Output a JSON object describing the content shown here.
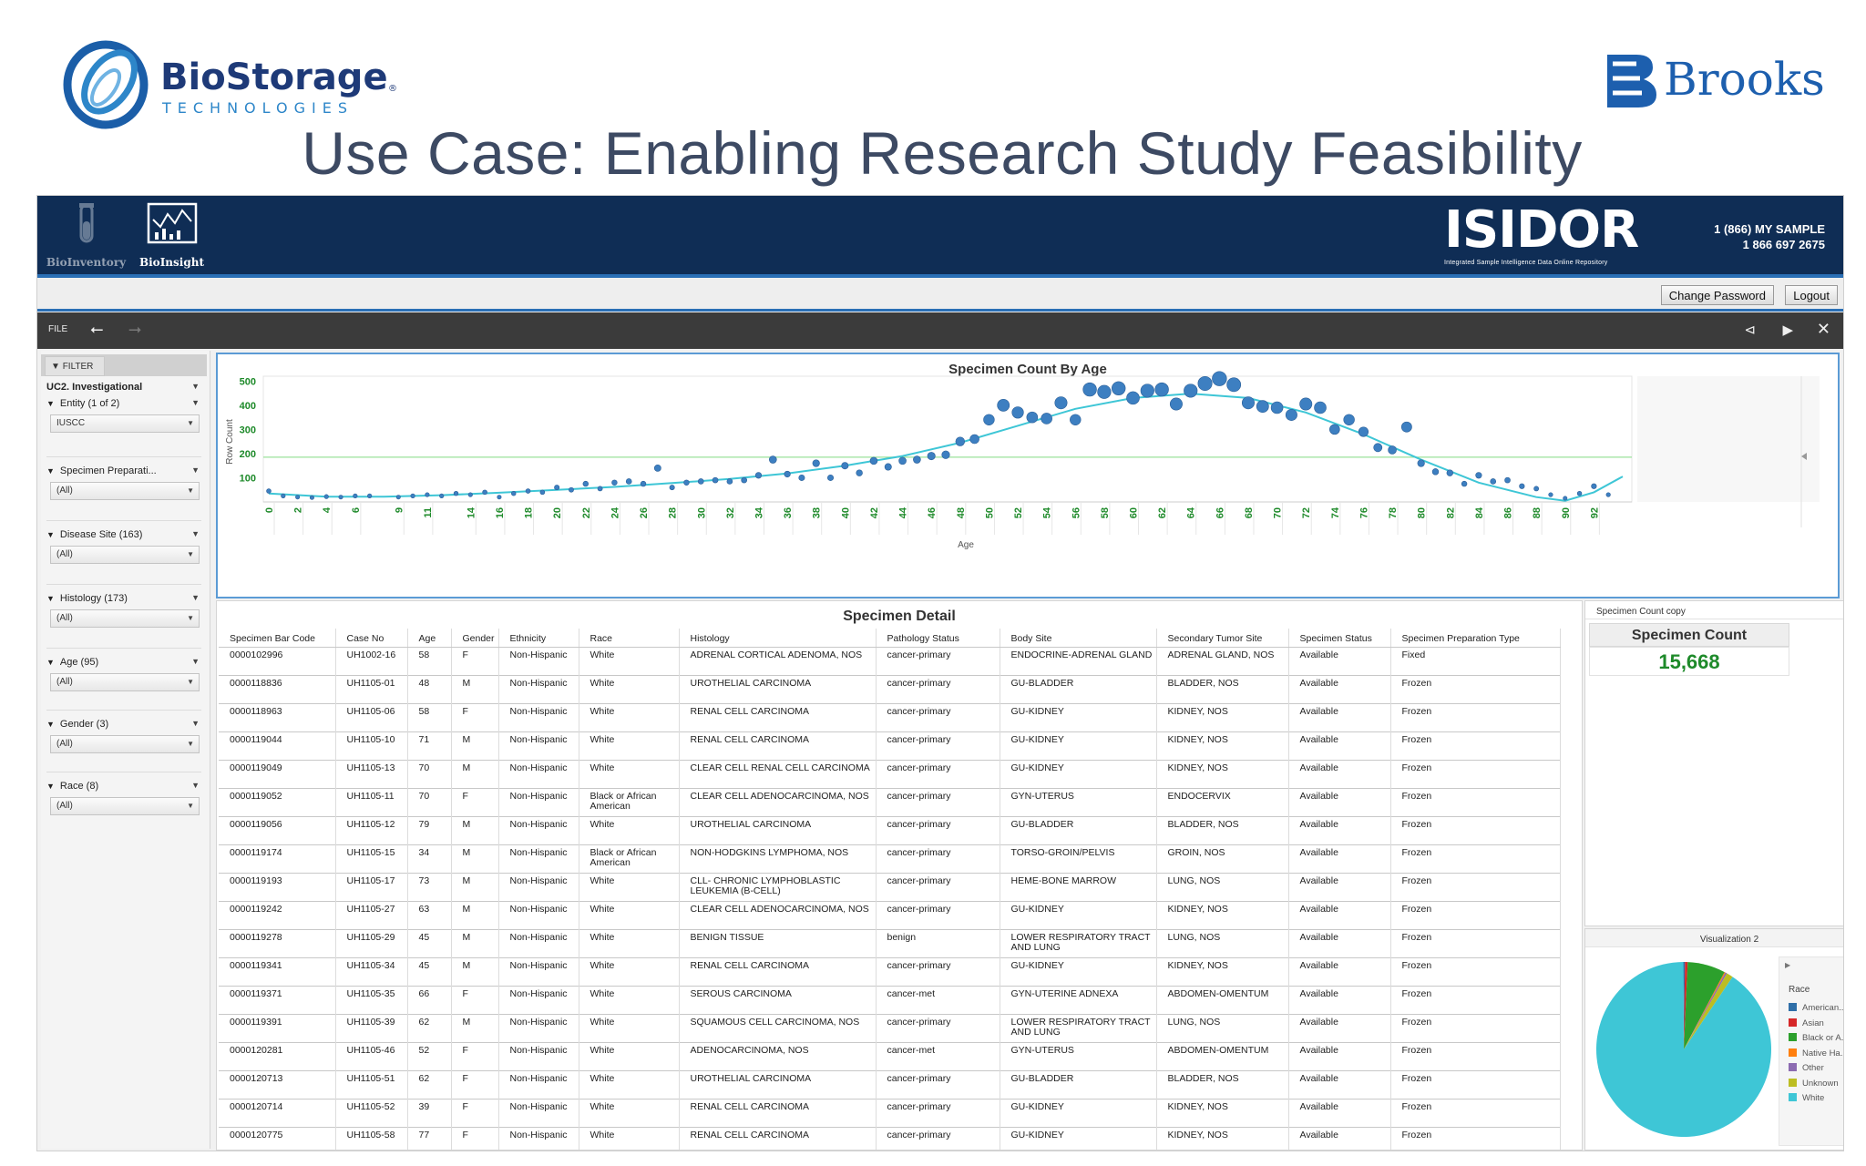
{
  "slide": {
    "title": "Use Case: Enabling Research Study Feasibility",
    "left_logo": {
      "name": "BioStorage",
      "sub": "TECHNOLOGIES",
      "mark": "®"
    },
    "right_logo": {
      "name": "Brooks"
    }
  },
  "topbar": {
    "apps": [
      {
        "label": "BioInventory"
      },
      {
        "label": "BioInsight"
      }
    ],
    "brand": {
      "name": "ISIDOR",
      "tagline": "Integrated Sample Intelligence Data Online Repository"
    },
    "phone_line1": "1 (866) MY SAMPLE",
    "phone_line2": "1 866 697 2675"
  },
  "account": {
    "change_password": "Change Password",
    "logout": "Logout"
  },
  "toolbar": {
    "file": "FILE"
  },
  "filters": {
    "tab_label": "FILTER",
    "preset": "UC2. Investigational",
    "groups": [
      {
        "label": "Entity (1 of 2)",
        "value": "IUSCC"
      },
      {
        "label": "Specimen Preparati...",
        "value": "(All)"
      },
      {
        "label": "Disease Site (163)",
        "value": "(All)"
      },
      {
        "label": "Histology (173)",
        "value": "(All)"
      },
      {
        "label": "Age (95)",
        "value": "(All)"
      },
      {
        "label": "Gender (3)",
        "value": "(All)"
      },
      {
        "label": "Race (8)",
        "value": "(All)"
      }
    ]
  },
  "chart_data": {
    "type": "scatter",
    "title": "Specimen Count By Age",
    "xlabel": "Age",
    "ylabel": "Row Count",
    "x_ticks": [
      0,
      2,
      4,
      6,
      9,
      11,
      14,
      16,
      18,
      20,
      22,
      24,
      26,
      28,
      30,
      32,
      34,
      36,
      38,
      40,
      42,
      44,
      46,
      48,
      50,
      52,
      54,
      56,
      58,
      60,
      62,
      64,
      66,
      68,
      70,
      72,
      74,
      76,
      78,
      80,
      82,
      84,
      86,
      88,
      90,
      92
    ],
    "y_ticks": [
      100,
      200,
      300,
      400,
      500
    ],
    "ylim": [
      0,
      520
    ],
    "reference_line": 185,
    "points": [
      [
        0,
        45
      ],
      [
        1,
        25
      ],
      [
        2,
        20
      ],
      [
        3,
        18
      ],
      [
        4,
        22
      ],
      [
        5,
        20
      ],
      [
        6,
        25
      ],
      [
        7,
        25
      ],
      [
        9,
        20
      ],
      [
        10,
        25
      ],
      [
        11,
        30
      ],
      [
        12,
        25
      ],
      [
        13,
        35
      ],
      [
        14,
        30
      ],
      [
        15,
        40
      ],
      [
        16,
        20
      ],
      [
        17,
        35
      ],
      [
        18,
        45
      ],
      [
        19,
        40
      ],
      [
        20,
        60
      ],
      [
        21,
        50
      ],
      [
        22,
        75
      ],
      [
        23,
        55
      ],
      [
        24,
        80
      ],
      [
        25,
        85
      ],
      [
        26,
        75
      ],
      [
        27,
        140
      ],
      [
        28,
        60
      ],
      [
        29,
        80
      ],
      [
        30,
        85
      ],
      [
        31,
        90
      ],
      [
        32,
        85
      ],
      [
        33,
        90
      ],
      [
        34,
        110
      ],
      [
        35,
        175
      ],
      [
        36,
        115
      ],
      [
        37,
        100
      ],
      [
        38,
        160
      ],
      [
        39,
        100
      ],
      [
        40,
        150
      ],
      [
        41,
        120
      ],
      [
        42,
        170
      ],
      [
        43,
        145
      ],
      [
        44,
        170
      ],
      [
        45,
        175
      ],
      [
        46,
        190
      ],
      [
        47,
        195
      ],
      [
        48,
        250
      ],
      [
        49,
        260
      ],
      [
        50,
        340
      ],
      [
        51,
        400
      ],
      [
        52,
        370
      ],
      [
        53,
        350
      ],
      [
        54,
        345
      ],
      [
        55,
        410
      ],
      [
        56,
        340
      ],
      [
        57,
        465
      ],
      [
        58,
        455
      ],
      [
        59,
        470
      ],
      [
        60,
        430
      ],
      [
        61,
        460
      ],
      [
        62,
        465
      ],
      [
        63,
        405
      ],
      [
        64,
        460
      ],
      [
        65,
        490
      ],
      [
        66,
        510
      ],
      [
        67,
        485
      ],
      [
        68,
        410
      ],
      [
        69,
        395
      ],
      [
        70,
        390
      ],
      [
        71,
        360
      ],
      [
        72,
        405
      ],
      [
        73,
        390
      ],
      [
        74,
        300
      ],
      [
        75,
        340
      ],
      [
        76,
        290
      ],
      [
        77,
        225
      ],
      [
        78,
        215
      ],
      [
        79,
        310
      ],
      [
        80,
        160
      ],
      [
        81,
        125
      ],
      [
        82,
        120
      ],
      [
        83,
        75
      ],
      [
        84,
        110
      ],
      [
        85,
        85
      ],
      [
        86,
        90
      ],
      [
        87,
        65
      ],
      [
        88,
        55
      ],
      [
        89,
        30
      ],
      [
        90,
        15
      ],
      [
        91,
        35
      ],
      [
        92,
        65
      ],
      [
        93,
        30
      ]
    ],
    "trend": [
      [
        0,
        35
      ],
      [
        4,
        22
      ],
      [
        8,
        22
      ],
      [
        12,
        28
      ],
      [
        16,
        38
      ],
      [
        20,
        50
      ],
      [
        24,
        62
      ],
      [
        28,
        78
      ],
      [
        32,
        95
      ],
      [
        36,
        118
      ],
      [
        40,
        150
      ],
      [
        44,
        190
      ],
      [
        48,
        245
      ],
      [
        52,
        315
      ],
      [
        56,
        385
      ],
      [
        60,
        430
      ],
      [
        64,
        448
      ],
      [
        68,
        430
      ],
      [
        72,
        370
      ],
      [
        76,
        280
      ],
      [
        80,
        175
      ],
      [
        84,
        80
      ],
      [
        88,
        20
      ],
      [
        90,
        5
      ],
      [
        92,
        40
      ],
      [
        94,
        105
      ]
    ],
    "grid": "off",
    "legend": "none"
  },
  "detail": {
    "title": "Specimen Detail",
    "columns": [
      "Specimen Bar Code",
      "Case No",
      "Age",
      "Gender",
      "Ethnicity",
      "Race",
      "Histology",
      "Pathology Status",
      "Body Site",
      "Secondary Tumor Site",
      "Specimen Status",
      "Specimen Preparation Type"
    ],
    "rows": [
      [
        "0000102996",
        "UH1002-16",
        "58",
        "F",
        "Non-Hispanic",
        "White",
        "ADRENAL CORTICAL ADENOMA, NOS",
        "cancer-primary",
        "ENDOCRINE-ADRENAL GLAND",
        "ADRENAL GLAND, NOS",
        "Available",
        "Fixed"
      ],
      [
        "0000118836",
        "UH1105-01",
        "48",
        "M",
        "Non-Hispanic",
        "White",
        "UROTHELIAL CARCINOMA",
        "cancer-primary",
        "GU-BLADDER",
        "BLADDER, NOS",
        "Available",
        "Frozen"
      ],
      [
        "0000118963",
        "UH1105-06",
        "58",
        "F",
        "Non-Hispanic",
        "White",
        "RENAL CELL CARCINOMA",
        "cancer-primary",
        "GU-KIDNEY",
        "KIDNEY, NOS",
        "Available",
        "Frozen"
      ],
      [
        "0000119044",
        "UH1105-10",
        "71",
        "M",
        "Non-Hispanic",
        "White",
        "RENAL CELL CARCINOMA",
        "cancer-primary",
        "GU-KIDNEY",
        "KIDNEY, NOS",
        "Available",
        "Frozen"
      ],
      [
        "0000119049",
        "UH1105-13",
        "70",
        "M",
        "Non-Hispanic",
        "White",
        "CLEAR CELL RENAL CELL CARCINOMA",
        "cancer-primary",
        "GU-KIDNEY",
        "KIDNEY, NOS",
        "Available",
        "Frozen"
      ],
      [
        "0000119052",
        "UH1105-11",
        "70",
        "F",
        "Non-Hispanic",
        "Black or African American",
        "CLEAR CELL ADENOCARCINOMA, NOS",
        "cancer-primary",
        "GYN-UTERUS",
        "ENDOCERVIX",
        "Available",
        "Frozen"
      ],
      [
        "0000119056",
        "UH1105-12",
        "79",
        "M",
        "Non-Hispanic",
        "White",
        "UROTHELIAL CARCINOMA",
        "cancer-primary",
        "GU-BLADDER",
        "BLADDER, NOS",
        "Available",
        "Frozen"
      ],
      [
        "0000119174",
        "UH1105-15",
        "34",
        "M",
        "Non-Hispanic",
        "Black or African American",
        "NON-HODGKINS LYMPHOMA, NOS",
        "cancer-primary",
        "TORSO-GROIN/PELVIS",
        "GROIN, NOS",
        "Available",
        "Frozen"
      ],
      [
        "0000119193",
        "UH1105-17",
        "73",
        "M",
        "Non-Hispanic",
        "White",
        "CLL- CHRONIC LYMPHOBLASTIC LEUKEMIA (B-CELL)",
        "cancer-primary",
        "HEME-BONE MARROW",
        "LUNG, NOS",
        "Available",
        "Frozen"
      ],
      [
        "0000119242",
        "UH1105-27",
        "63",
        "M",
        "Non-Hispanic",
        "White",
        "CLEAR CELL ADENOCARCINOMA, NOS",
        "cancer-primary",
        "GU-KIDNEY",
        "KIDNEY, NOS",
        "Available",
        "Frozen"
      ],
      [
        "0000119278",
        "UH1105-29",
        "45",
        "M",
        "Non-Hispanic",
        "White",
        "BENIGN TISSUE",
        "benign",
        "LOWER RESPIRATORY TRACT AND LUNG",
        "LUNG, NOS",
        "Available",
        "Frozen"
      ],
      [
        "0000119341",
        "UH1105-34",
        "45",
        "M",
        "Non-Hispanic",
        "White",
        "RENAL CELL CARCINOMA",
        "cancer-primary",
        "GU-KIDNEY",
        "KIDNEY, NOS",
        "Available",
        "Frozen"
      ],
      [
        "0000119371",
        "UH1105-35",
        "66",
        "F",
        "Non-Hispanic",
        "White",
        "SEROUS CARCINOMA",
        "cancer-met",
        "GYN-UTERINE ADNEXA",
        "ABDOMEN-OMENTUM",
        "Available",
        "Frozen"
      ],
      [
        "0000119391",
        "UH1105-39",
        "62",
        "M",
        "Non-Hispanic",
        "White",
        "SQUAMOUS CELL CARCINOMA, NOS",
        "cancer-primary",
        "LOWER RESPIRATORY TRACT AND LUNG",
        "LUNG, NOS",
        "Available",
        "Frozen"
      ],
      [
        "0000120281",
        "UH1105-46",
        "52",
        "F",
        "Non-Hispanic",
        "White",
        "ADENOCARCINOMA, NOS",
        "cancer-met",
        "GYN-UTERUS",
        "ABDOMEN-OMENTUM",
        "Available",
        "Frozen"
      ],
      [
        "0000120713",
        "UH1105-51",
        "62",
        "F",
        "Non-Hispanic",
        "White",
        "UROTHELIAL CARCINOMA",
        "cancer-primary",
        "GU-BLADDER",
        "BLADDER, NOS",
        "Available",
        "Frozen"
      ],
      [
        "0000120714",
        "UH1105-52",
        "39",
        "F",
        "Non-Hispanic",
        "White",
        "RENAL CELL CARCINOMA",
        "cancer-primary",
        "GU-KIDNEY",
        "KIDNEY, NOS",
        "Available",
        "Frozen"
      ],
      [
        "0000120775",
        "UH1105-58",
        "77",
        "F",
        "Non-Hispanic",
        "White",
        "RENAL CELL CARCINOMA",
        "cancer-primary",
        "GU-KIDNEY",
        "KIDNEY, NOS",
        "Available",
        "Frozen"
      ]
    ]
  },
  "count": {
    "panel_title": "Specimen Count copy",
    "header": "Specimen Count",
    "value": "15,668"
  },
  "viz": {
    "title": "Visualization 2",
    "legend_title": "Race",
    "pie": [
      {
        "label": "American...",
        "color": "#2f6fa8",
        "value": 0.3
      },
      {
        "label": "Asian",
        "color": "#d62728",
        "value": 0.5
      },
      {
        "label": "Black or A...",
        "color": "#2ca02c",
        "value": 7.0
      },
      {
        "label": "Native Ha...",
        "color": "#ff7f0e",
        "value": 0.2
      },
      {
        "label": "Other",
        "color": "#8c6bb1",
        "value": 0.3
      },
      {
        "label": "Unknown",
        "color": "#bcbd22",
        "value": 1.2
      },
      {
        "label": "White",
        "color": "#3ec6d6",
        "value": 90.5
      }
    ]
  }
}
